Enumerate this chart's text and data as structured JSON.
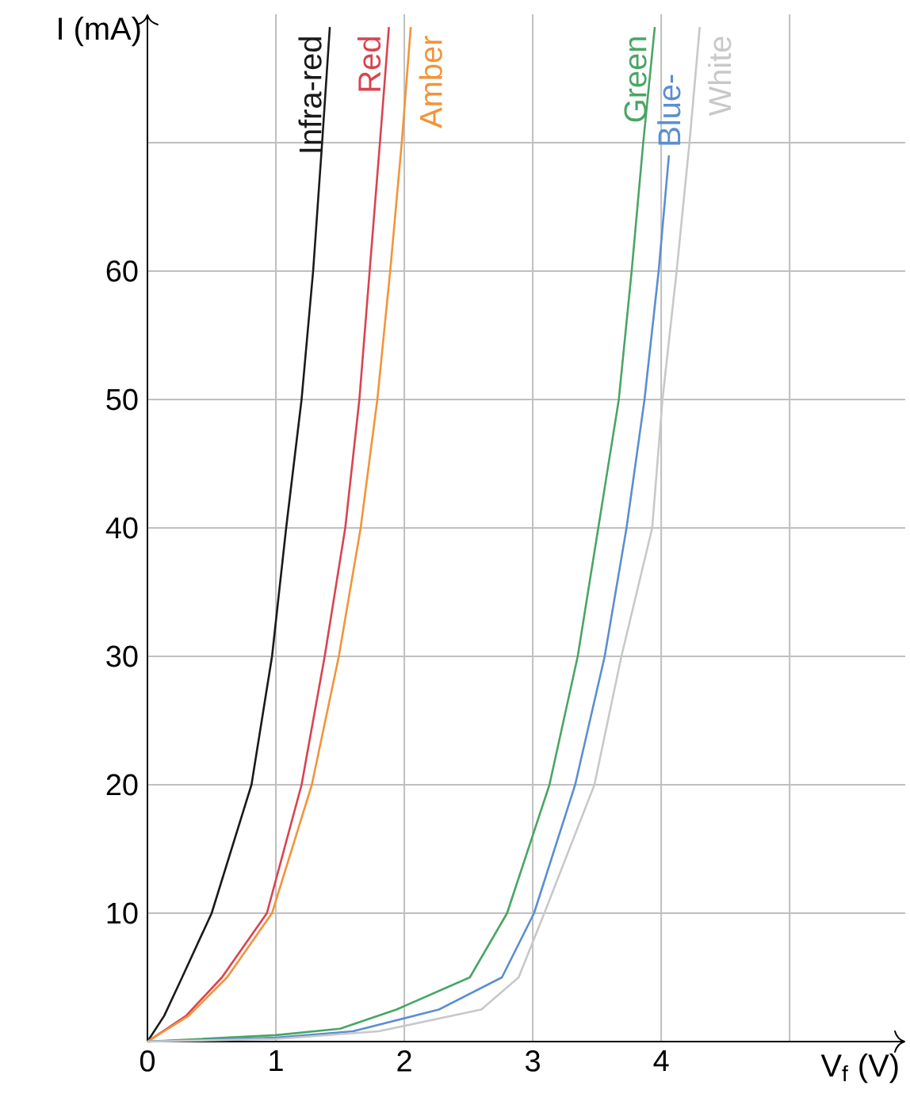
{
  "chart_data": {
    "type": "line",
    "xlabel": "V$_{f}$ (V)",
    "ylabel": "I (mA)",
    "xlim": [
      0,
      5.9
    ],
    "ylim": [
      0,
      80
    ],
    "xticks": [
      0,
      1,
      2,
      3,
      4,
      {
        "value": 5,
        "label": null
      }
    ],
    "yticks": [
      10,
      20,
      30,
      40,
      50,
      60,
      {
        "value": 70,
        "label": null
      }
    ],
    "grid": true,
    "marker": "none",
    "line_style": "solid",
    "series": [
      {
        "name": "Infra-red",
        "color": "#1a1a1a",
        "x": [
          0,
          0.13,
          0.27,
          0.5,
          0.81,
          0.97,
          1.08,
          1.2,
          1.29,
          1.36,
          1.42
        ],
        "values": [
          0,
          2,
          5,
          10,
          20,
          30,
          40,
          50,
          60,
          70,
          79
        ]
      },
      {
        "name": "Red",
        "color": "#d9434f",
        "x": [
          0,
          0.3,
          0.58,
          0.93,
          1.2,
          1.38,
          1.54,
          1.65,
          1.73,
          1.81,
          1.88
        ],
        "values": [
          0,
          2,
          5,
          10,
          20,
          30,
          40,
          50,
          60,
          70,
          79
        ]
      },
      {
        "name": "Amber",
        "color": "#f2943a",
        "x": [
          0,
          0.32,
          0.62,
          0.97,
          1.28,
          1.49,
          1.66,
          1.79,
          1.89,
          1.98,
          2.05
        ],
        "values": [
          0,
          2,
          5,
          10,
          20,
          30,
          40,
          50,
          60,
          70,
          79
        ]
      },
      {
        "name": "Green",
        "color": "#4aa564",
        "x": [
          0,
          1,
          1.5,
          1.94,
          2.51,
          2.8,
          3.13,
          3.35,
          3.51,
          3.67,
          3.77,
          3.86,
          3.95
        ],
        "values": [
          0,
          0.5,
          1,
          2.5,
          5,
          10,
          20,
          30,
          40,
          50,
          60,
          70,
          79
        ]
      },
      {
        "name": "Blue-",
        "color": "#5b8ed0",
        "x": [
          0,
          1,
          1.6,
          2.27,
          2.76,
          3.01,
          3.33,
          3.56,
          3.73,
          3.87,
          3.98,
          4.06
        ],
        "values": [
          0,
          0.3,
          0.8,
          2.5,
          5,
          10,
          20,
          30,
          40,
          50,
          60,
          69
        ]
      },
      {
        "name": "White",
        "color": "#c8c8c8",
        "x": [
          0,
          1,
          1.8,
          2.6,
          2.89,
          3.09,
          3.48,
          3.69,
          3.93,
          4.01,
          4.12,
          4.22,
          4.3
        ],
        "values": [
          0,
          0.2,
          0.8,
          2.5,
          5,
          10,
          20,
          30,
          40,
          50,
          60,
          70,
          79
        ]
      }
    ]
  }
}
